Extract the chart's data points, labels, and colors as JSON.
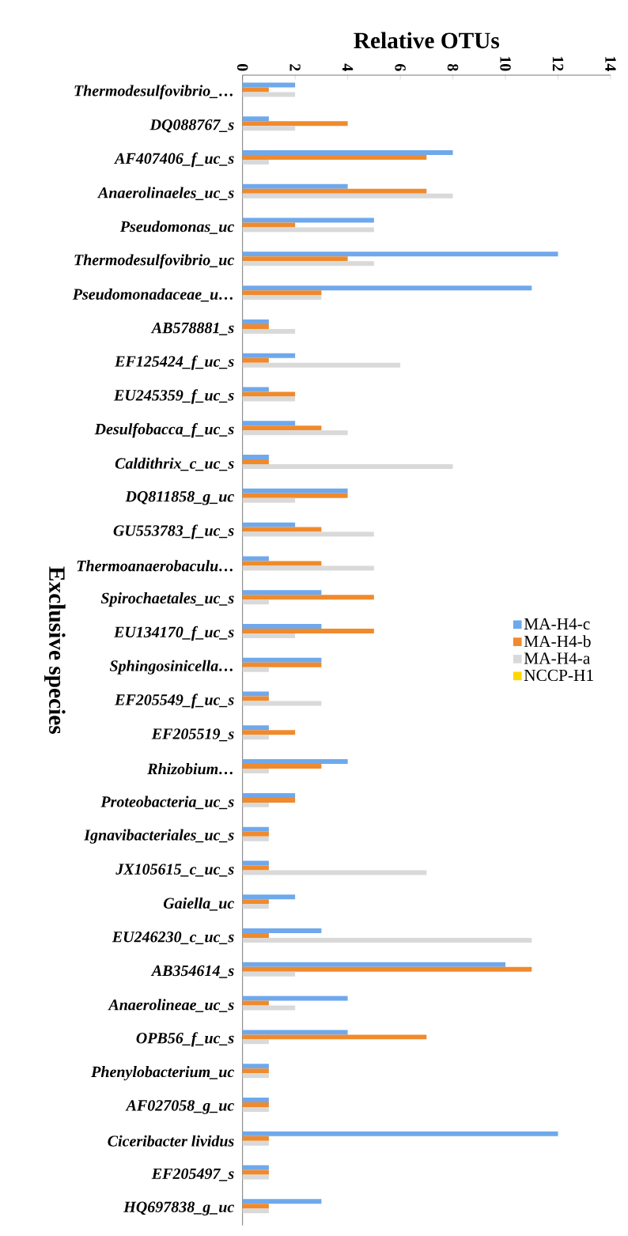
{
  "chart_data": {
    "type": "bar",
    "orientation": "horizontal",
    "xlabel": "Relative OTUs",
    "ylabel": "Exclusive species",
    "categories": [
      "Thermodesulfovibrio_…",
      "DQ088767_s",
      "AF407406_f_uc_s",
      "Anaerolinaeles_uc_s",
      "Pseudomonas_uc",
      "Thermodesulfovibrio_uc",
      "Pseudomonadaceae_u…",
      "AB578881_s",
      "EF125424_f_uc_s",
      "EU245359_f_uc_s",
      "Desulfobacca_f_uc_s",
      "Caldithrix_c_uc_s",
      "DQ811858_g_uc",
      "GU553783_f_uc_s",
      "Thermoanaerobaculu…",
      "Spirochaetales_uc_s",
      "EU134170_f_uc_s",
      "Sphingosinicella…",
      "EF205549_f_uc_s",
      "EF205519_s",
      "Rhizobium…",
      "Proteobacteria_uc_s",
      "Ignavibacteriales_uc_s",
      "JX105615_c_uc_s",
      "Gaiella_uc",
      "EU246230_c_uc_s",
      "AB354614_s",
      "Anaerolineae_uc_s",
      "OPB56_f_uc_s",
      "Phenylobacterium_uc",
      "AF027058_g_uc",
      "Ciceribacter lividus",
      "EF205497_s",
      "HQ697838_g_uc"
    ],
    "series": [
      {
        "name": "MA-H4-c",
        "color": "#6fa8ec",
        "values": [
          2,
          1,
          8,
          4,
          5,
          12,
          11,
          1,
          2,
          1,
          2,
          1,
          4,
          2,
          1,
          3,
          3,
          3,
          1,
          1,
          4,
          2,
          1,
          1,
          2,
          3,
          10,
          4,
          4,
          1,
          1,
          12,
          1,
          3
        ]
      },
      {
        "name": "MA-H4-b",
        "color": "#f08a2c",
        "values": [
          1,
          4,
          7,
          7,
          2,
          4,
          3,
          1,
          1,
          2,
          3,
          1,
          4,
          3,
          3,
          5,
          5,
          3,
          1,
          2,
          3,
          2,
          1,
          1,
          1,
          1,
          11,
          1,
          7,
          1,
          1,
          1,
          1,
          1
        ]
      },
      {
        "name": "MA-H4-a",
        "color": "#d9d9d9",
        "values": [
          2,
          2,
          1,
          8,
          5,
          5,
          3,
          2,
          6,
          2,
          4,
          8,
          2,
          5,
          5,
          1,
          2,
          1,
          3,
          1,
          1,
          1,
          1,
          7,
          1,
          11,
          2,
          2,
          1,
          1,
          1,
          1,
          1,
          1
        ]
      },
      {
        "name": "NCCP-H1",
        "color": "#ffd700",
        "values": [
          0,
          0,
          0,
          0,
          0,
          0,
          0,
          0,
          0,
          0,
          0,
          0,
          0,
          0,
          0,
          0,
          0,
          0,
          0,
          0,
          0,
          0,
          0,
          0,
          0,
          0,
          0,
          0,
          0,
          0,
          0,
          0,
          0,
          0
        ]
      }
    ],
    "xlim": [
      0,
      14
    ],
    "xticks": [
      0,
      2,
      4,
      6,
      8,
      10,
      12,
      14
    ],
    "legend": "right"
  }
}
